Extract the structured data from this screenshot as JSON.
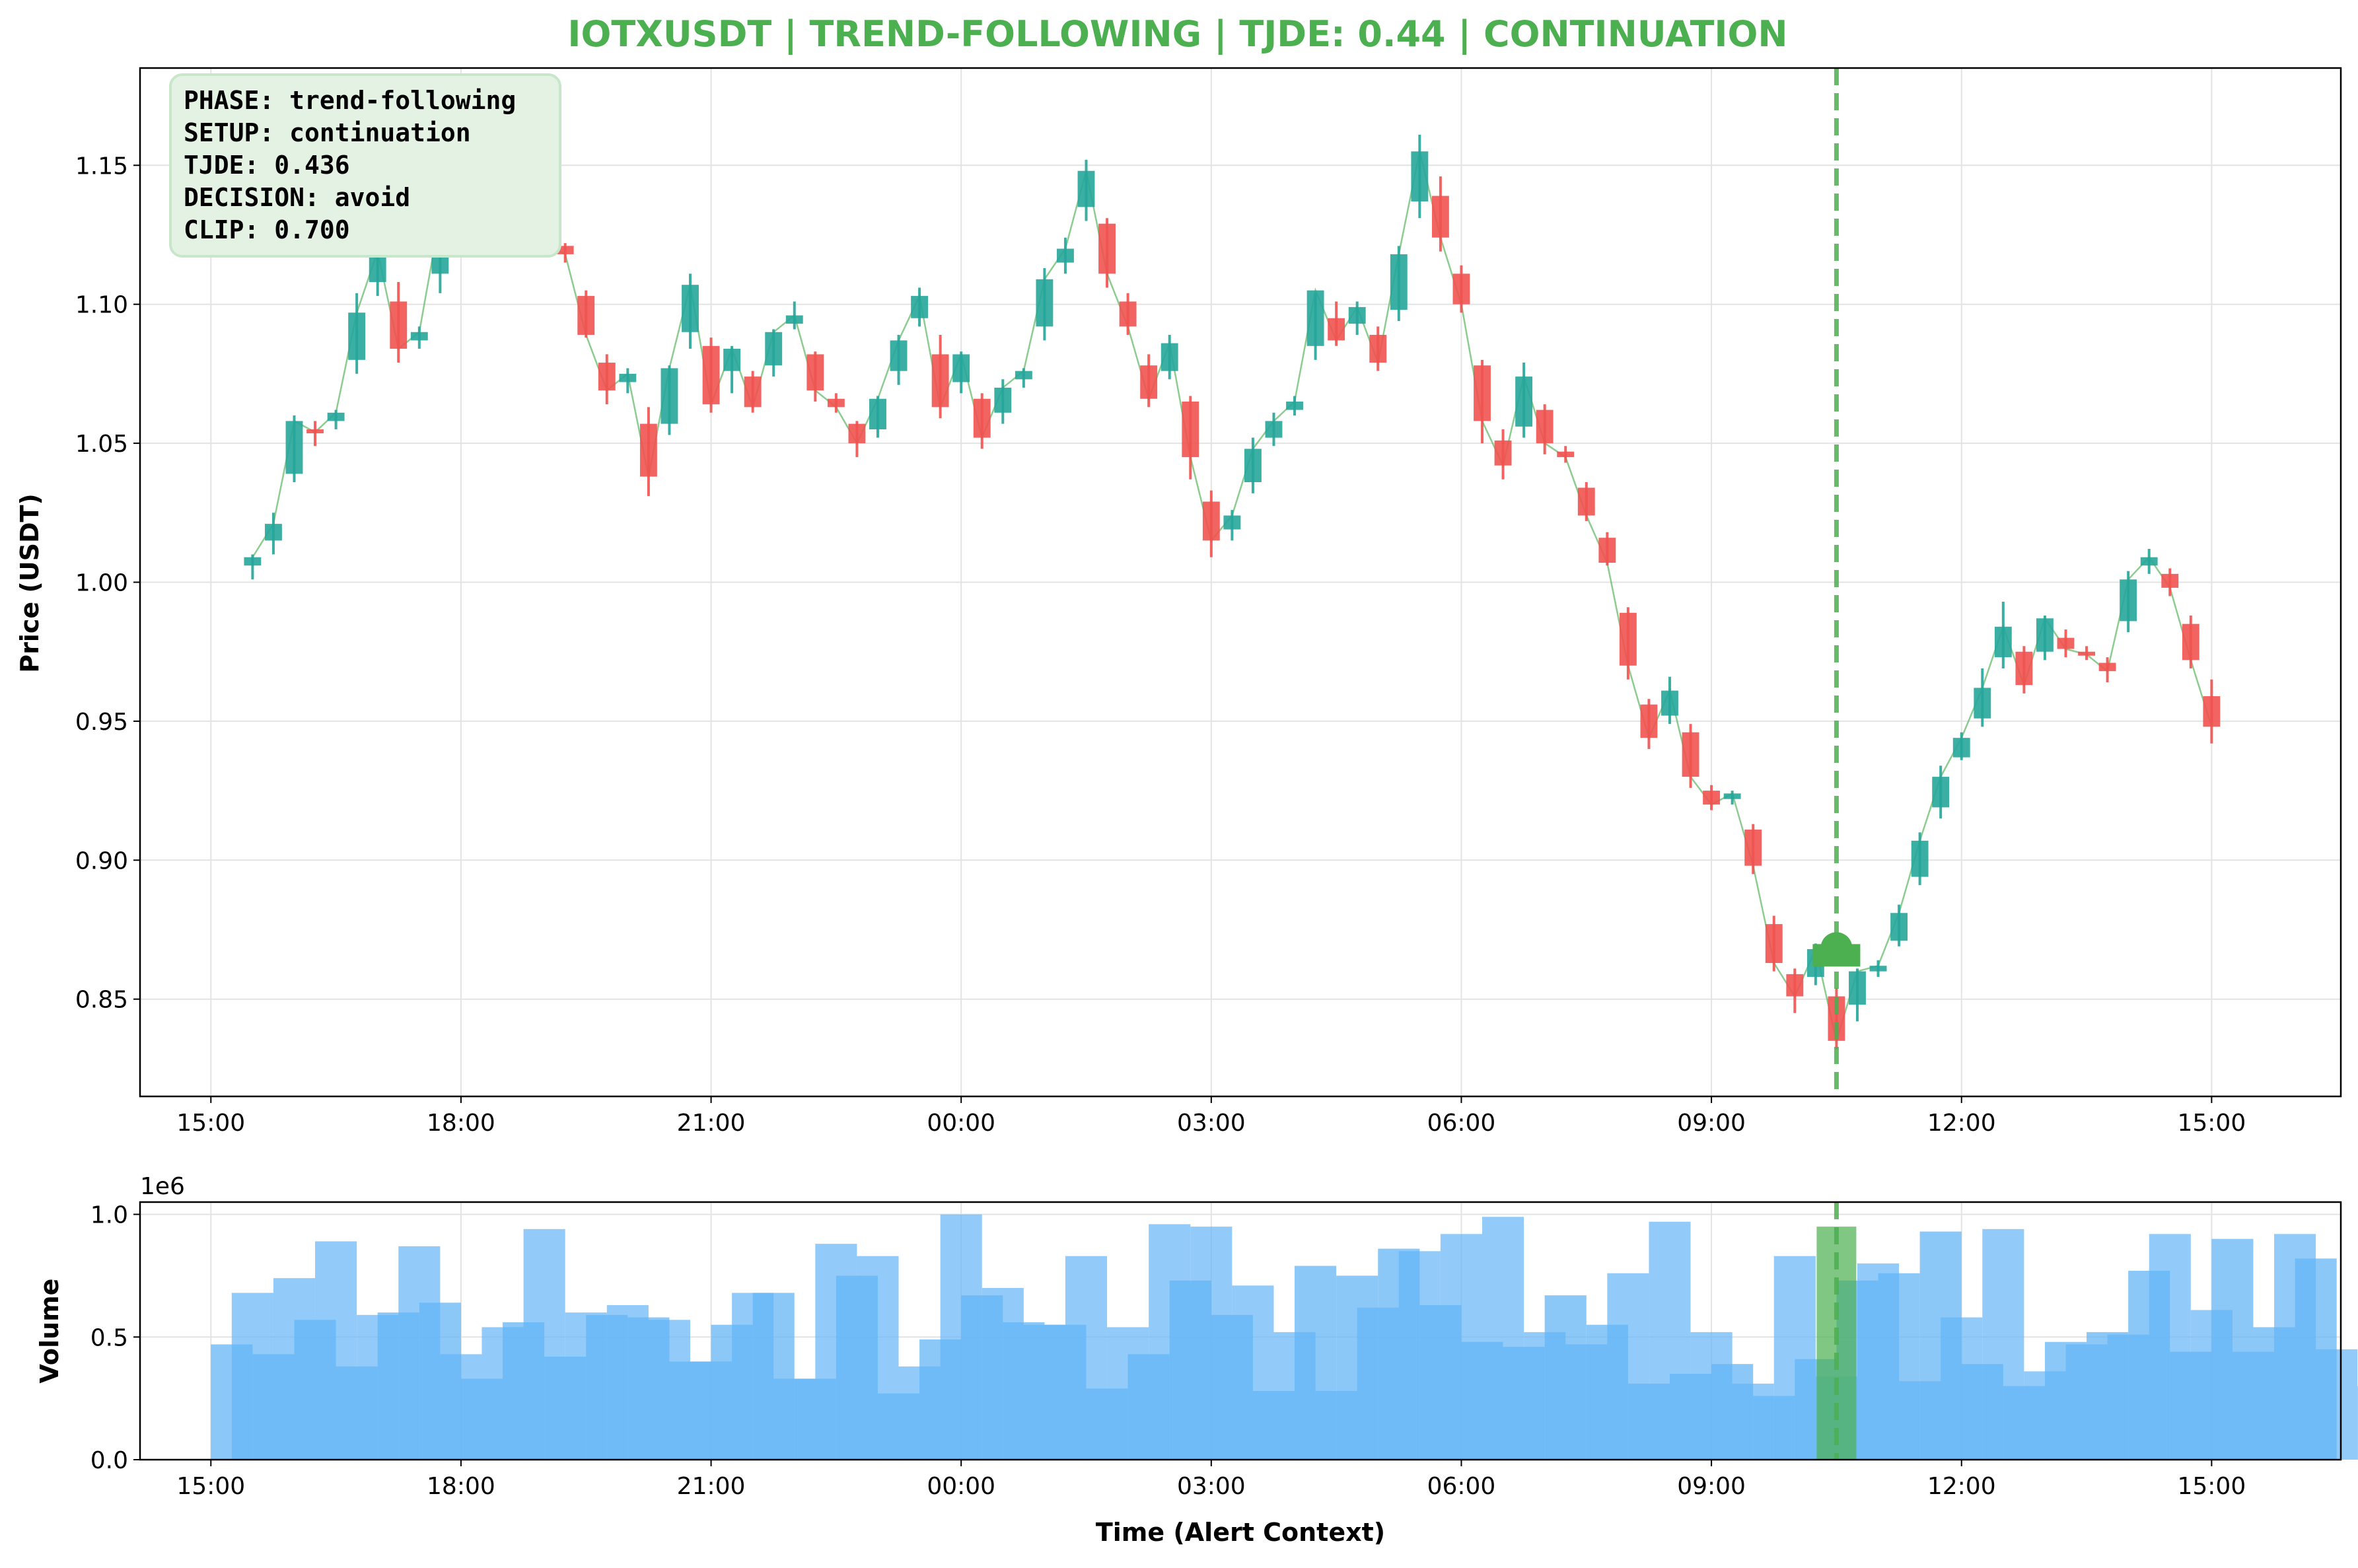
{
  "chart_data": [
    {
      "type": "candlestick",
      "title": "IOTXUSDT | TREND-FOLLOWING | TJDE: 0.44 | CONTINUATION",
      "title_color": "#4caf50",
      "ylabel": "Price (USDT)",
      "xlabel": "",
      "ylim": [
        0.815,
        1.185
      ],
      "yticks": [
        "0.85",
        "0.90",
        "0.95",
        "1.00",
        "1.05",
        "1.10",
        "1.15"
      ],
      "ytick_values": [
        0.85,
        0.9,
        0.95,
        1.0,
        1.05,
        1.1,
        1.15
      ],
      "xlim_hours": [
        14.15,
        40.55
      ],
      "xticks": [
        "15:00",
        "18:00",
        "21:00",
        "00:00",
        "03:00",
        "06:00",
        "09:00",
        "12:00",
        "15:00"
      ],
      "xtick_hours": [
        15,
        18,
        21,
        24,
        27,
        30,
        33,
        36,
        39
      ],
      "grid": true,
      "colors": {
        "up": "#26a69a",
        "down": "#ef5350",
        "line": "#66bb6a",
        "alert": "#4caf50"
      },
      "candles": [
        {
          "t": 15.5,
          "o": 1.006,
          "h": 1.01,
          "l": 1.001,
          "c": 1.009
        },
        {
          "t": 15.75,
          "o": 1.015,
          "h": 1.025,
          "l": 1.01,
          "c": 1.021
        },
        {
          "t": 16.0,
          "o": 1.039,
          "h": 1.06,
          "l": 1.036,
          "c": 1.058
        },
        {
          "t": 16.25,
          "o": 1.055,
          "h": 1.058,
          "l": 1.049,
          "c": 1.054
        },
        {
          "t": 16.5,
          "o": 1.058,
          "h": 1.062,
          "l": 1.055,
          "c": 1.061
        },
        {
          "t": 16.75,
          "o": 1.08,
          "h": 1.104,
          "l": 1.075,
          "c": 1.097
        },
        {
          "t": 17.0,
          "o": 1.108,
          "h": 1.124,
          "l": 1.103,
          "c": 1.119
        },
        {
          "t": 17.25,
          "o": 1.101,
          "h": 1.108,
          "l": 1.079,
          "c": 1.084
        },
        {
          "t": 17.5,
          "o": 1.087,
          "h": 1.092,
          "l": 1.084,
          "c": 1.09
        },
        {
          "t": 17.75,
          "o": 1.111,
          "h": 1.135,
          "l": 1.104,
          "c": 1.132
        },
        {
          "t": 18.0,
          "o": 1.132,
          "h": 1.133,
          "l": 1.128,
          "c": 1.131
        },
        {
          "t": 18.25,
          "o": 1.131,
          "h": 1.132,
          "l": 1.126,
          "c": 1.13
        },
        {
          "t": 18.5,
          "o": 1.144,
          "h": 1.165,
          "l": 1.138,
          "c": 1.158
        },
        {
          "t": 18.75,
          "o": 1.163,
          "h": 1.17,
          "l": 1.158,
          "c": 1.166
        },
        {
          "t": 19.0,
          "o": 1.144,
          "h": 1.147,
          "l": 1.121,
          "c": 1.122
        },
        {
          "t": 19.25,
          "o": 1.121,
          "h": 1.122,
          "l": 1.115,
          "c": 1.118
        },
        {
          "t": 19.5,
          "o": 1.103,
          "h": 1.105,
          "l": 1.088,
          "c": 1.089
        },
        {
          "t": 19.75,
          "o": 1.079,
          "h": 1.082,
          "l": 1.064,
          "c": 1.069
        },
        {
          "t": 20.0,
          "o": 1.072,
          "h": 1.077,
          "l": 1.068,
          "c": 1.075
        },
        {
          "t": 20.25,
          "o": 1.057,
          "h": 1.063,
          "l": 1.031,
          "c": 1.038
        },
        {
          "t": 20.5,
          "o": 1.057,
          "h": 1.078,
          "l": 1.053,
          "c": 1.077
        },
        {
          "t": 20.75,
          "o": 1.09,
          "h": 1.111,
          "l": 1.084,
          "c": 1.107
        },
        {
          "t": 21.0,
          "o": 1.085,
          "h": 1.088,
          "l": 1.061,
          "c": 1.064
        },
        {
          "t": 21.25,
          "o": 1.076,
          "h": 1.085,
          "l": 1.068,
          "c": 1.084
        },
        {
          "t": 21.5,
          "o": 1.074,
          "h": 1.076,
          "l": 1.061,
          "c": 1.063
        },
        {
          "t": 21.75,
          "o": 1.078,
          "h": 1.091,
          "l": 1.074,
          "c": 1.09
        },
        {
          "t": 22.0,
          "o": 1.093,
          "h": 1.101,
          "l": 1.091,
          "c": 1.096
        },
        {
          "t": 22.25,
          "o": 1.082,
          "h": 1.083,
          "l": 1.065,
          "c": 1.069
        },
        {
          "t": 22.5,
          "o": 1.066,
          "h": 1.068,
          "l": 1.061,
          "c": 1.063
        },
        {
          "t": 22.75,
          "o": 1.057,
          "h": 1.058,
          "l": 1.045,
          "c": 1.05
        },
        {
          "t": 23.0,
          "o": 1.055,
          "h": 1.067,
          "l": 1.052,
          "c": 1.066
        },
        {
          "t": 23.25,
          "o": 1.076,
          "h": 1.089,
          "l": 1.071,
          "c": 1.087
        },
        {
          "t": 23.5,
          "o": 1.095,
          "h": 1.106,
          "l": 1.092,
          "c": 1.103
        },
        {
          "t": 23.75,
          "o": 1.082,
          "h": 1.089,
          "l": 1.059,
          "c": 1.063
        },
        {
          "t": 24.0,
          "o": 1.072,
          "h": 1.083,
          "l": 1.068,
          "c": 1.082
        },
        {
          "t": 24.25,
          "o": 1.066,
          "h": 1.068,
          "l": 1.048,
          "c": 1.052
        },
        {
          "t": 24.5,
          "o": 1.061,
          "h": 1.073,
          "l": 1.057,
          "c": 1.07
        },
        {
          "t": 24.75,
          "o": 1.073,
          "h": 1.077,
          "l": 1.07,
          "c": 1.076
        },
        {
          "t": 25.0,
          "o": 1.092,
          "h": 1.113,
          "l": 1.087,
          "c": 1.109
        },
        {
          "t": 25.25,
          "o": 1.115,
          "h": 1.124,
          "l": 1.111,
          "c": 1.12
        },
        {
          "t": 25.5,
          "o": 1.135,
          "h": 1.152,
          "l": 1.13,
          "c": 1.148
        },
        {
          "t": 25.75,
          "o": 1.129,
          "h": 1.131,
          "l": 1.106,
          "c": 1.111
        },
        {
          "t": 26.0,
          "o": 1.101,
          "h": 1.104,
          "l": 1.089,
          "c": 1.092
        },
        {
          "t": 26.25,
          "o": 1.078,
          "h": 1.082,
          "l": 1.063,
          "c": 1.066
        },
        {
          "t": 26.5,
          "o": 1.076,
          "h": 1.089,
          "l": 1.073,
          "c": 1.086
        },
        {
          "t": 26.75,
          "o": 1.065,
          "h": 1.067,
          "l": 1.037,
          "c": 1.045
        },
        {
          "t": 27.0,
          "o": 1.029,
          "h": 1.033,
          "l": 1.009,
          "c": 1.015
        },
        {
          "t": 27.25,
          "o": 1.019,
          "h": 1.026,
          "l": 1.015,
          "c": 1.024
        },
        {
          "t": 27.5,
          "o": 1.036,
          "h": 1.052,
          "l": 1.032,
          "c": 1.048
        },
        {
          "t": 27.75,
          "o": 1.052,
          "h": 1.061,
          "l": 1.049,
          "c": 1.058
        },
        {
          "t": 28.0,
          "o": 1.062,
          "h": 1.067,
          "l": 1.06,
          "c": 1.065
        },
        {
          "t": 28.25,
          "o": 1.085,
          "h": 1.104,
          "l": 1.08,
          "c": 1.105
        },
        {
          "t": 28.5,
          "o": 1.095,
          "h": 1.101,
          "l": 1.085,
          "c": 1.087
        },
        {
          "t": 28.75,
          "o": 1.093,
          "h": 1.101,
          "l": 1.089,
          "c": 1.099
        },
        {
          "t": 29.0,
          "o": 1.089,
          "h": 1.092,
          "l": 1.076,
          "c": 1.079
        },
        {
          "t": 29.25,
          "o": 1.098,
          "h": 1.121,
          "l": 1.094,
          "c": 1.118
        },
        {
          "t": 29.5,
          "o": 1.137,
          "h": 1.161,
          "l": 1.131,
          "c": 1.155
        },
        {
          "t": 29.75,
          "o": 1.139,
          "h": 1.146,
          "l": 1.119,
          "c": 1.124
        },
        {
          "t": 30.0,
          "o": 1.111,
          "h": 1.114,
          "l": 1.097,
          "c": 1.1
        },
        {
          "t": 30.25,
          "o": 1.078,
          "h": 1.08,
          "l": 1.05,
          "c": 1.058
        },
        {
          "t": 30.5,
          "o": 1.051,
          "h": 1.055,
          "l": 1.037,
          "c": 1.042
        },
        {
          "t": 30.75,
          "o": 1.056,
          "h": 1.079,
          "l": 1.052,
          "c": 1.074
        },
        {
          "t": 31.0,
          "o": 1.062,
          "h": 1.064,
          "l": 1.046,
          "c": 1.05
        },
        {
          "t": 31.25,
          "o": 1.047,
          "h": 1.049,
          "l": 1.043,
          "c": 1.045
        },
        {
          "t": 31.5,
          "o": 1.034,
          "h": 1.036,
          "l": 1.022,
          "c": 1.024
        },
        {
          "t": 31.75,
          "o": 1.016,
          "h": 1.018,
          "l": 1.006,
          "c": 1.007
        },
        {
          "t": 32.0,
          "o": 0.989,
          "h": 0.991,
          "l": 0.965,
          "c": 0.97
        },
        {
          "t": 32.25,
          "o": 0.956,
          "h": 0.958,
          "l": 0.94,
          "c": 0.944
        },
        {
          "t": 32.5,
          "o": 0.952,
          "h": 0.966,
          "l": 0.949,
          "c": 0.961
        },
        {
          "t": 32.75,
          "o": 0.946,
          "h": 0.949,
          "l": 0.926,
          "c": 0.93
        },
        {
          "t": 33.0,
          "o": 0.925,
          "h": 0.927,
          "l": 0.918,
          "c": 0.92
        },
        {
          "t": 33.25,
          "o": 0.922,
          "h": 0.925,
          "l": 0.92,
          "c": 0.924
        },
        {
          "t": 33.5,
          "o": 0.911,
          "h": 0.913,
          "l": 0.895,
          "c": 0.898
        },
        {
          "t": 33.75,
          "o": 0.877,
          "h": 0.88,
          "l": 0.86,
          "c": 0.863
        },
        {
          "t": 34.0,
          "o": 0.859,
          "h": 0.861,
          "l": 0.845,
          "c": 0.851
        },
        {
          "t": 34.25,
          "o": 0.858,
          "h": 0.87,
          "l": 0.855,
          "c": 0.868
        },
        {
          "t": 34.5,
          "o": 0.851,
          "h": 0.854,
          "l": 0.832,
          "c": 0.835
        },
        {
          "t": 34.75,
          "o": 0.848,
          "h": 0.861,
          "l": 0.842,
          "c": 0.86
        },
        {
          "t": 35.0,
          "o": 0.86,
          "h": 0.864,
          "l": 0.858,
          "c": 0.862
        },
        {
          "t": 35.25,
          "o": 0.871,
          "h": 0.884,
          "l": 0.869,
          "c": 0.881
        },
        {
          "t": 35.5,
          "o": 0.894,
          "h": 0.91,
          "l": 0.891,
          "c": 0.907
        },
        {
          "t": 35.75,
          "o": 0.919,
          "h": 0.934,
          "l": 0.915,
          "c": 0.93
        },
        {
          "t": 36.0,
          "o": 0.937,
          "h": 0.946,
          "l": 0.936,
          "c": 0.944
        },
        {
          "t": 36.25,
          "o": 0.951,
          "h": 0.969,
          "l": 0.948,
          "c": 0.962
        },
        {
          "t": 36.5,
          "o": 0.973,
          "h": 0.993,
          "l": 0.969,
          "c": 0.984
        },
        {
          "t": 36.75,
          "o": 0.975,
          "h": 0.977,
          "l": 0.96,
          "c": 0.963
        },
        {
          "t": 37.0,
          "o": 0.975,
          "h": 0.988,
          "l": 0.972,
          "c": 0.987
        },
        {
          "t": 37.25,
          "o": 0.98,
          "h": 0.983,
          "l": 0.973,
          "c": 0.976
        },
        {
          "t": 37.5,
          "o": 0.975,
          "h": 0.977,
          "l": 0.972,
          "c": 0.974
        },
        {
          "t": 37.75,
          "o": 0.971,
          "h": 0.973,
          "l": 0.964,
          "c": 0.968
        },
        {
          "t": 38.0,
          "o": 0.986,
          "h": 1.004,
          "l": 0.982,
          "c": 1.001
        },
        {
          "t": 38.25,
          "o": 1.006,
          "h": 1.012,
          "l": 1.003,
          "c": 1.009
        },
        {
          "t": 38.5,
          "o": 1.003,
          "h": 1.005,
          "l": 0.995,
          "c": 0.998
        },
        {
          "t": 38.75,
          "o": 0.985,
          "h": 0.988,
          "l": 0.969,
          "c": 0.972
        },
        {
          "t": 39.0,
          "o": 0.959,
          "h": 0.965,
          "l": 0.942,
          "c": 0.948
        }
      ],
      "alert": {
        "t": 34.5,
        "price": 0.866,
        "label_color": "#4caf50"
      },
      "info_box": {
        "lines": [
          "PHASE: trend-following",
          "SETUP: continuation",
          "TJDE: 0.436",
          "DECISION: avoid",
          "CLIP: 0.700"
        ],
        "bg": "#e4f2e4",
        "border": "#c8e6c9"
      }
    },
    {
      "type": "bar",
      "title": "",
      "ylabel": "Volume",
      "xlabel": "Time (Alert Context)",
      "offset_text": "1e6",
      "ylim": [
        0,
        1.05
      ],
      "yticks": [
        "0.0",
        "0.5",
        "1.0"
      ],
      "ytick_values": [
        0,
        0.5,
        1.0
      ],
      "xlim_hours": [
        14.15,
        40.55
      ],
      "xticks": [
        "15:00",
        "18:00",
        "21:00",
        "00:00",
        "03:00",
        "06:00",
        "09:00",
        "12:00",
        "15:00"
      ],
      "xtick_hours": [
        15,
        18,
        21,
        24,
        27,
        30,
        33,
        36,
        39
      ],
      "grid": true,
      "bar_color": "#64b5f6",
      "highlight_color": "#4caf50",
      "volume_series_a": [
        0.47,
        0.43,
        0.57,
        0.38,
        0.6,
        0.64,
        0.33,
        0.56,
        0.42,
        0.59,
        0.58,
        0.4,
        0.55,
        0.68,
        0.33,
        0.75,
        0.27,
        0.49,
        0.67,
        0.56,
        0.55,
        0.29,
        0.43,
        0.73,
        0.59,
        0.28,
        0.79,
        0.75,
        0.86,
        0.63,
        0.48,
        0.46,
        0.67,
        0.55,
        0.31,
        0.35,
        0.39,
        0.26,
        0.41,
        0.73,
        0.76,
        0.93,
        0.39,
        0.3,
        0.48,
        0.52,
        0.77,
        0.44,
        0.9,
        0.54,
        0.82
      ],
      "volume_series_b": [
        0.68,
        0.74,
        0.89,
        0.59,
        0.87,
        0.43,
        0.54,
        0.94,
        0.6,
        0.63,
        0.57,
        0.4,
        0.68,
        0.33,
        0.88,
        0.83,
        0.38,
        1.0,
        0.7,
        0.55,
        0.83,
        0.54,
        0.96,
        0.95,
        0.71,
        0.52,
        0.28,
        0.62,
        0.85,
        0.92,
        0.99,
        0.52,
        0.47,
        0.76,
        0.97,
        0.52,
        0.31,
        0.83,
        0.34,
        0.8,
        0.32,
        0.58,
        0.94,
        0.36,
        0.47,
        0.51,
        0.92,
        0.61,
        0.44,
        0.92,
        0.45,
        0.3
      ],
      "highlight": {
        "t": 34.5,
        "value": 0.95
      }
    }
  ]
}
